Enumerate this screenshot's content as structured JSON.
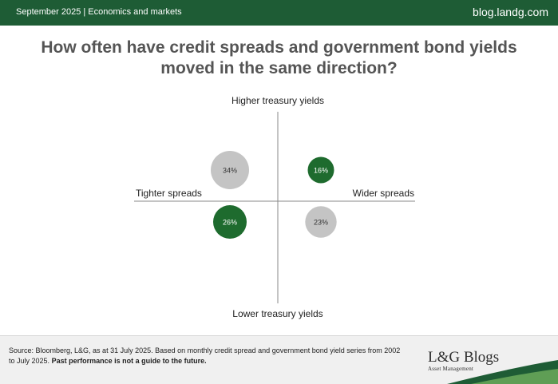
{
  "header": {
    "date_label": "September 2025 | Economics and markets",
    "site": "blog.landg.com"
  },
  "title": "How often have credit spreads and government bond yields moved in the same direction?",
  "chart_data": {
    "type": "quadrant-bubbles",
    "axes": {
      "top": "Higher treasury yields",
      "bottom": "Lower treasury yields",
      "left": "Tighter spreads",
      "right": "Wider spreads"
    },
    "quadrants": [
      {
        "spreads": "tighter",
        "yields": "higher",
        "value": 34,
        "label": "34%",
        "color": "#c4c4c4"
      },
      {
        "spreads": "wider",
        "yields": "higher",
        "value": 16,
        "label": "16%",
        "color": "#1e6b2e"
      },
      {
        "spreads": "tighter",
        "yields": "lower",
        "value": 26,
        "label": "26%",
        "color": "#1e6b2e"
      },
      {
        "spreads": "wider",
        "yields": "lower",
        "value": 23,
        "label": "23%",
        "color": "#c4c4c4"
      }
    ]
  },
  "footer": {
    "source_text": "Source: Bloomberg, L&G, as at 31 July 2025. Based on monthly credit spread and government bond yield series from 2002 to July 2025.",
    "disclaimer": "Past performance is not a guide to the future.",
    "logo_main": "L&G Blogs",
    "logo_sub": "Asset Management"
  },
  "colors": {
    "brand_green": "#1e5c35",
    "bubble_green": "#1e6b2e",
    "bubble_grey": "#c4c4c4",
    "title_grey": "#555555"
  }
}
